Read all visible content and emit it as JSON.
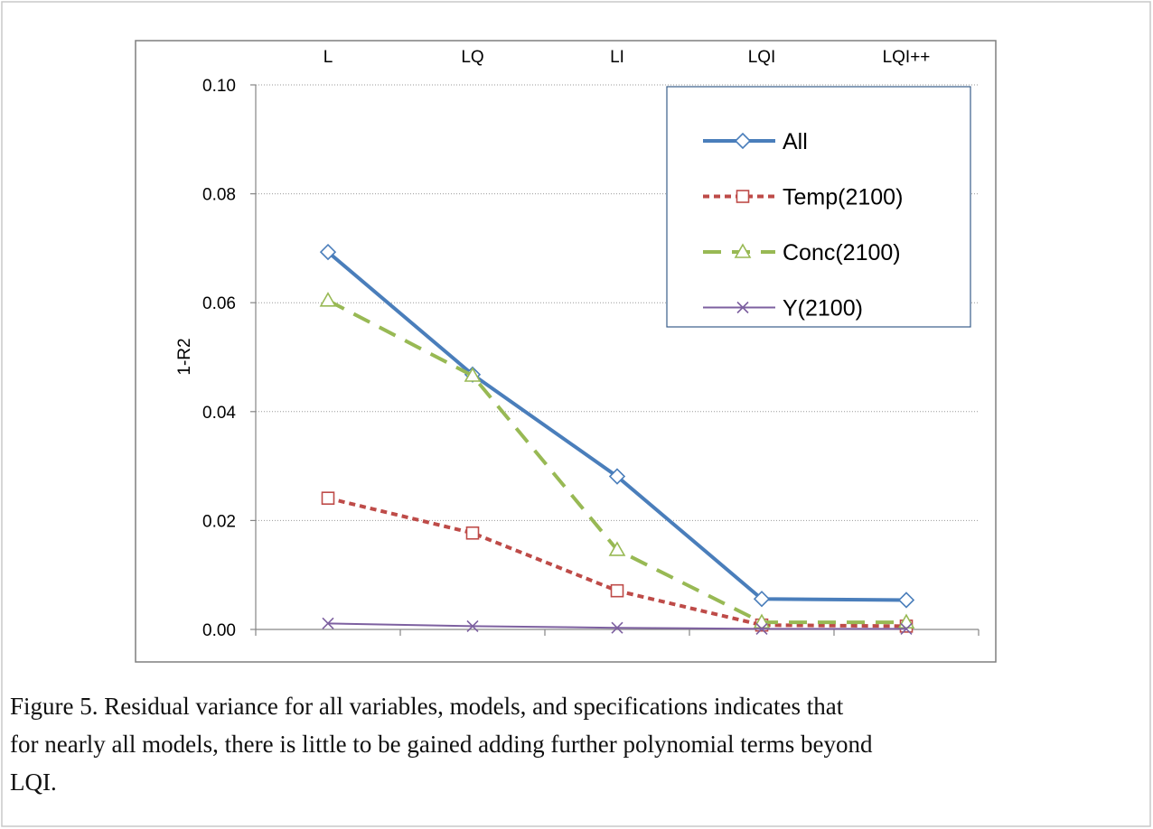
{
  "chart_data": {
    "type": "line",
    "categories": [
      "L",
      "LQ",
      "LI",
      "LQI",
      "LQI++"
    ],
    "y_label": "1-R2",
    "ylim": [
      0,
      0.1
    ],
    "yticks": [
      {
        "value": 0,
        "label": "0.00"
      },
      {
        "value": 0.02,
        "label": "0.02"
      },
      {
        "value": 0.04,
        "label": "0.04"
      },
      {
        "value": 0.06,
        "label": "0.06"
      },
      {
        "value": 0.08,
        "label": "0.08"
      },
      {
        "value": 0.1,
        "label": "0.10"
      }
    ],
    "grid": true,
    "legend": "upper right",
    "series": [
      {
        "name": "All",
        "color": "#4a7ebb",
        "marker": "diamond",
        "dash": "solid",
        "values": [
          0.0693,
          0.0468,
          0.0281,
          0.0056,
          0.0054
        ]
      },
      {
        "name": "Temp(2100)",
        "color": "#be4b48",
        "marker": "square",
        "dash": "short",
        "values": [
          0.0241,
          0.0177,
          0.0071,
          0.0008,
          0.0006
        ]
      },
      {
        "name": "Conc(2100)",
        "color": "#98b954",
        "marker": "triangle",
        "dash": "long",
        "values": [
          0.0604,
          0.0466,
          0.0146,
          0.0013,
          0.0013
        ]
      },
      {
        "name": "Y(2100)",
        "color": "#7d60a0",
        "marker": "x",
        "dash": "thin",
        "values": [
          0.0011,
          0.0006,
          0.0003,
          0.0001,
          0.0001
        ]
      }
    ]
  },
  "caption": [
    "Figure 5. Residual variance for all variables, models, and specifications indicates that",
    "for nearly all models, there is little to be gained adding further polynomial terms beyond",
    "LQI."
  ]
}
